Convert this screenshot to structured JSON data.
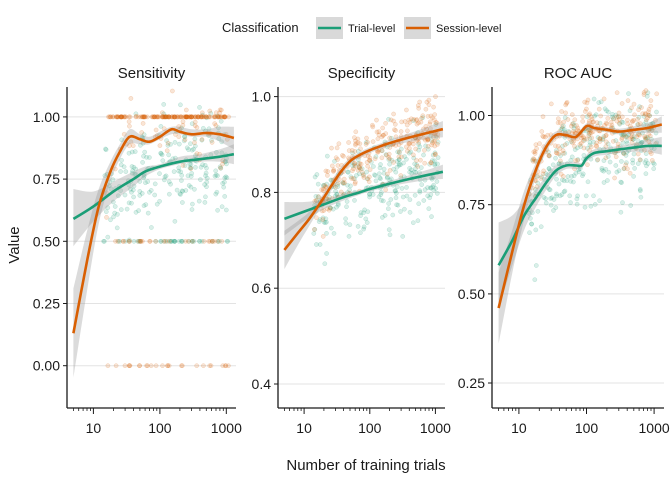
{
  "legend": {
    "title": "Classification",
    "items": [
      {
        "label": "Trial-level",
        "color": "#1b9e77"
      },
      {
        "label": "Session-level",
        "color": "#d95f02"
      }
    ]
  },
  "axes": {
    "xlabel": "Number of training trials",
    "ylabel": "Value"
  },
  "chart_data": [
    {
      "type": "scatter",
      "title": "Sensitivity",
      "xscale": "log",
      "xlim": [
        4,
        1400
      ],
      "ylim": [
        -0.17,
        1.12
      ],
      "xticks": [
        10,
        100,
        1000
      ],
      "xtick_labels": [
        "10",
        "100",
        "1000"
      ],
      "yticks": [
        0,
        0.25,
        0.5,
        0.75,
        1
      ],
      "ytick_labels": [
        "0.00",
        "0.25",
        "0.50",
        "0.75",
        "1.00"
      ],
      "grid": true,
      "series": [
        {
          "name": "Trial-level",
          "color": "#1b9e77",
          "smooth_x": [
            5,
            10,
            20,
            40,
            60,
            100,
            200,
            400,
            800,
            1300
          ],
          "smooth_y": [
            0.59,
            0.64,
            0.7,
            0.75,
            0.78,
            0.8,
            0.82,
            0.83,
            0.84,
            0.85
          ],
          "band_lo": [
            0.48,
            0.58,
            0.66,
            0.72,
            0.76,
            0.79,
            0.81,
            0.82,
            0.82,
            0.81
          ],
          "band_hi": [
            0.71,
            0.7,
            0.74,
            0.78,
            0.8,
            0.81,
            0.84,
            0.85,
            0.87,
            0.89
          ]
        },
        {
          "name": "Session-level",
          "color": "#d95f02",
          "smooth_x": [
            5,
            8,
            12,
            18,
            25,
            35,
            50,
            70,
            100,
            150,
            200,
            300,
            500,
            800,
            1300
          ],
          "smooth_y": [
            0.13,
            0.42,
            0.64,
            0.78,
            0.86,
            0.92,
            0.91,
            0.9,
            0.92,
            0.95,
            0.94,
            0.93,
            0.935,
            0.93,
            0.915
          ],
          "band_lo": [
            -0.05,
            0.3,
            0.57,
            0.74,
            0.83,
            0.89,
            0.89,
            0.89,
            0.91,
            0.93,
            0.93,
            0.92,
            0.92,
            0.9,
            0.87
          ],
          "band_hi": [
            0.31,
            0.54,
            0.71,
            0.82,
            0.89,
            0.95,
            0.93,
            0.92,
            0.94,
            0.96,
            0.96,
            0.95,
            0.95,
            0.96,
            0.96
          ]
        }
      ]
    },
    {
      "type": "scatter",
      "title": "Specificity",
      "xscale": "log",
      "xlim": [
        4,
        1400
      ],
      "ylim": [
        0.35,
        1.02
      ],
      "xticks": [
        10,
        100,
        1000
      ],
      "xtick_labels": [
        "10",
        "100",
        "1000"
      ],
      "yticks": [
        0.4,
        0.6,
        0.8,
        1.0
      ],
      "ytick_labels": [
        "0.4",
        "0.6",
        "0.8",
        "1.0"
      ],
      "grid": true,
      "series": [
        {
          "name": "Trial-level",
          "color": "#1b9e77",
          "smooth_x": [
            5,
            10,
            20,
            40,
            70,
            100,
            200,
            400,
            800,
            1300
          ],
          "smooth_y": [
            0.745,
            0.76,
            0.775,
            0.79,
            0.8,
            0.807,
            0.818,
            0.828,
            0.837,
            0.843
          ],
          "band_lo": [
            0.71,
            0.74,
            0.765,
            0.783,
            0.795,
            0.802,
            0.812,
            0.82,
            0.826,
            0.828
          ],
          "band_hi": [
            0.78,
            0.78,
            0.785,
            0.797,
            0.805,
            0.812,
            0.824,
            0.836,
            0.848,
            0.858
          ]
        },
        {
          "name": "Session-level",
          "color": "#d95f02",
          "smooth_x": [
            5,
            8,
            12,
            18,
            25,
            35,
            50,
            70,
            100,
            150,
            200,
            300,
            500,
            800,
            1300
          ],
          "smooth_y": [
            0.68,
            0.715,
            0.745,
            0.78,
            0.81,
            0.84,
            0.865,
            0.878,
            0.888,
            0.897,
            0.903,
            0.91,
            0.918,
            0.925,
            0.932
          ],
          "band_lo": [
            0.64,
            0.69,
            0.73,
            0.77,
            0.8,
            0.83,
            0.858,
            0.872,
            0.882,
            0.891,
            0.896,
            0.902,
            0.908,
            0.912,
            0.915
          ],
          "band_hi": [
            0.72,
            0.74,
            0.76,
            0.79,
            0.82,
            0.85,
            0.872,
            0.884,
            0.894,
            0.903,
            0.91,
            0.918,
            0.928,
            0.938,
            0.949
          ]
        }
      ]
    },
    {
      "type": "scatter",
      "title": "ROC AUC",
      "xscale": "log",
      "xlim": [
        4,
        1400
      ],
      "ylim": [
        0.18,
        1.08
      ],
      "xticks": [
        10,
        100,
        1000
      ],
      "xtick_labels": [
        "10",
        "100",
        "1000"
      ],
      "yticks": [
        0.25,
        0.5,
        0.75,
        1.0
      ],
      "ytick_labels": [
        "0.25",
        "0.50",
        "0.75",
        "1.00"
      ],
      "grid": true,
      "series": [
        {
          "name": "Trial-level",
          "color": "#1b9e77",
          "smooth_x": [
            5,
            8,
            12,
            18,
            25,
            35,
            50,
            70,
            85,
            100,
            130,
            200,
            300,
            500,
            800,
            1300
          ],
          "smooth_y": [
            0.58,
            0.65,
            0.72,
            0.77,
            0.81,
            0.845,
            0.86,
            0.86,
            0.86,
            0.88,
            0.895,
            0.9,
            0.905,
            0.91,
            0.915,
            0.915
          ],
          "band_lo": [
            0.46,
            0.58,
            0.68,
            0.745,
            0.79,
            0.83,
            0.85,
            0.85,
            0.852,
            0.87,
            0.885,
            0.89,
            0.895,
            0.898,
            0.898,
            0.89
          ],
          "band_hi": [
            0.7,
            0.72,
            0.76,
            0.795,
            0.83,
            0.86,
            0.87,
            0.87,
            0.868,
            0.89,
            0.905,
            0.91,
            0.915,
            0.922,
            0.932,
            0.94
          ]
        },
        {
          "name": "Session-level",
          "color": "#d95f02",
          "smooth_x": [
            5,
            8,
            12,
            18,
            25,
            35,
            50,
            70,
            100,
            130,
            200,
            300,
            500,
            800,
            1300
          ],
          "smooth_y": [
            0.46,
            0.62,
            0.75,
            0.85,
            0.91,
            0.945,
            0.945,
            0.94,
            0.97,
            0.965,
            0.96,
            0.955,
            0.96,
            0.965,
            0.975
          ],
          "band_lo": [
            0.36,
            0.56,
            0.71,
            0.83,
            0.895,
            0.935,
            0.937,
            0.932,
            0.962,
            0.958,
            0.953,
            0.947,
            0.95,
            0.951,
            0.952
          ],
          "band_hi": [
            0.56,
            0.68,
            0.79,
            0.87,
            0.925,
            0.955,
            0.953,
            0.948,
            0.978,
            0.972,
            0.967,
            0.963,
            0.97,
            0.979,
            0.998
          ]
        }
      ]
    }
  ]
}
